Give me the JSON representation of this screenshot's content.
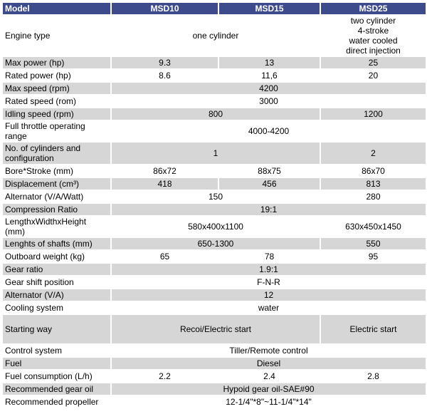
{
  "header": {
    "model": "Model",
    "msd10": "MSD10",
    "msd15": "MSD15",
    "msd25": "MSD25"
  },
  "rows": {
    "engine_type": {
      "label": "Engine type",
      "shared": "one cylinder",
      "msd25": "two cylinder\n4-stroke\nwater cooled\ndirect injection"
    },
    "max_power": {
      "label": "Max power (hp)",
      "msd10": "9.3",
      "msd15": "13",
      "msd25": "25"
    },
    "rated_power": {
      "label": "Rated power (hp)",
      "msd10": "8.6",
      "msd15": "11,6",
      "msd25": "20"
    },
    "max_speed": {
      "label": "Max speed (rpm)",
      "all": "4200"
    },
    "rated_speed": {
      "label": "Rated speed (rom)",
      "all": "3000"
    },
    "idling_speed": {
      "label": "Idling speed (rpm)",
      "shared": "800",
      "msd25": "1200"
    },
    "full_throttle": {
      "label": "Full throttle operating range",
      "all": "4000-4200"
    },
    "cylinders": {
      "label": "No. of cylinders and configuration",
      "shared": "1",
      "msd25": "2"
    },
    "bore_stroke": {
      "label": "Bore*Stroke (mm)",
      "msd10": "86x72",
      "msd15": "88x75",
      "msd25": "86x70"
    },
    "displacement": {
      "label": "Displacement (cm³)",
      "msd10": "418",
      "msd15": "456",
      "msd25": "813"
    },
    "alternator_vaw": {
      "label": "Alternator (V/A/Watt)",
      "shared": "150",
      "msd25": "280"
    },
    "compression": {
      "label": "Compression Ratio",
      "all": "19:1"
    },
    "dimensions": {
      "label": "LengthxWidthxHeight (mm)",
      "shared": "580x400x1100",
      "msd25": "630x450x1450"
    },
    "shaft_length": {
      "label": "Lenghts of shafts (mm)",
      "shared": "650-1300",
      "msd25": "550"
    },
    "weight": {
      "label": "Outboard weight (kg)",
      "msd10": "65",
      "msd15": "78",
      "msd25": "95"
    },
    "gear_ratio": {
      "label": "Gear ratio",
      "all": "1.9:1"
    },
    "gear_shift": {
      "label": "Gear shift position",
      "all": "F-N-R"
    },
    "alternator_va": {
      "label": "Alternator (V/A)",
      "all": "12"
    },
    "cooling": {
      "label": "Cooling system",
      "all": "water"
    },
    "starting": {
      "label": "Starting way",
      "shared": "Recoi/Electric start",
      "msd25": "Electric start"
    },
    "control": {
      "label": "Control system",
      "all": "Tiller/Remote control"
    },
    "fuel": {
      "label": "Fuel",
      "all": "Diesel"
    },
    "fuel_consumption": {
      "label": "Fuel consumption (L/h)",
      "msd10": "2.2",
      "msd15": "2.4",
      "msd25": "2.8"
    },
    "gear_oil": {
      "label": "Recommended gear oil",
      "all": "Hypoid gear oil-SAE#90"
    },
    "propeller": {
      "label": "Recommended propeller",
      "all": "12-1/4\"*8\"~11-1/4\"*14\""
    }
  }
}
